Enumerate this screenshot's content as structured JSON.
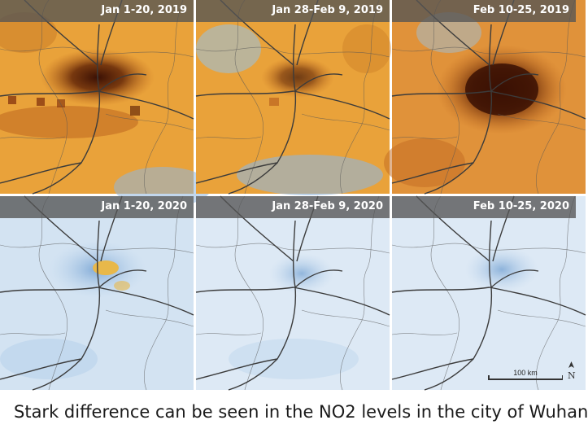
{
  "panels": [
    {
      "date": "Jan 1-20, 2019",
      "level": "high"
    },
    {
      "date": "Jan 28-Feb 9, 2019",
      "level": "high"
    },
    {
      "date": "Feb 10-25, 2019",
      "level": "very-high"
    },
    {
      "date": "Jan 1-20, 2020",
      "level": "low"
    },
    {
      "date": "Jan 28-Feb 9, 2020",
      "level": "very-low"
    },
    {
      "date": "Feb 10-25, 2020",
      "level": "very-low"
    }
  ],
  "scale": {
    "label": "100 km"
  },
  "north": {
    "label": "N"
  },
  "caption": "Stark difference can be seen in the NO2 levels in the city of Wuhan",
  "colors": {
    "orange": "#e9a23a",
    "dark_brown": "#4a1806",
    "light_blue": "#d3e3f2",
    "blue": "#8fb6de"
  }
}
